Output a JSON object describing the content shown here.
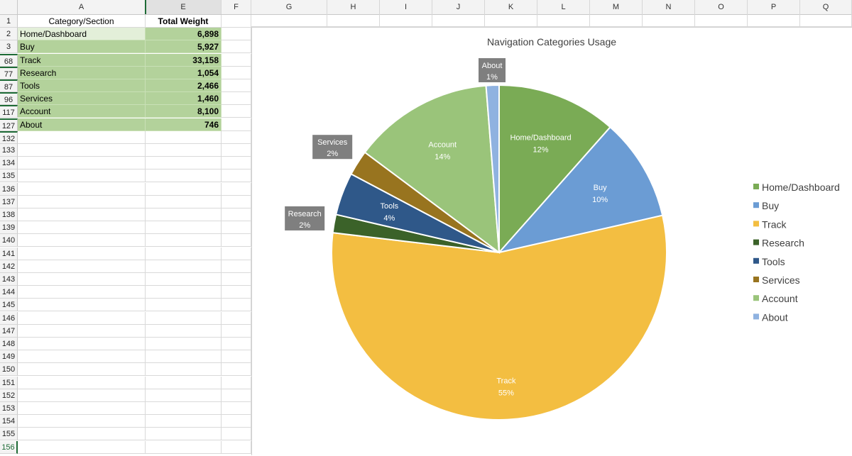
{
  "columns": [
    "A",
    "E",
    "F",
    "G",
    "H",
    "I",
    "J",
    "K",
    "L",
    "M",
    "N",
    "O",
    "P",
    "Q"
  ],
  "table": {
    "headers": {
      "row": "1",
      "a": "Category/Section",
      "e": "Total Weight"
    },
    "rows": [
      {
        "row": "2",
        "a": "Home/Dashboard",
        "e": "6,898"
      },
      {
        "row": "3",
        "a": "Buy",
        "e": "5,927"
      },
      {
        "row": "68",
        "a": "Track",
        "e": "33,158"
      },
      {
        "row": "77",
        "a": "Research",
        "e": "1,054"
      },
      {
        "row": "87",
        "a": "Tools",
        "e": "2,466"
      },
      {
        "row": "96",
        "a": "Services",
        "e": "1,460"
      },
      {
        "row": "117",
        "a": "Account",
        "e": "8,100"
      },
      {
        "row": "127",
        "a": "About",
        "e": "746"
      }
    ],
    "empty_rows": [
      "132",
      "133",
      "134",
      "135",
      "136",
      "137",
      "138",
      "139",
      "140",
      "141",
      "142",
      "143",
      "144",
      "145",
      "146",
      "147",
      "148",
      "149",
      "150",
      "151",
      "152",
      "153",
      "154",
      "155",
      "156"
    ]
  },
  "colors": {
    "Home/Dashboard": "#7aab55",
    "Buy": "#6b9cd4",
    "Track": "#f3be41",
    "Research": "#3b6229",
    "Tools": "#2f5889",
    "Services": "#98741f",
    "Account": "#9ac47a",
    "About": "#8fb2e0",
    "callout_bg": "#7f7f7f",
    "selection_green": "#1e6b36"
  },
  "chart_data": {
    "type": "pie",
    "title": "Navigation Categories Usage",
    "categories": [
      "Home/Dashboard",
      "Buy",
      "Track",
      "Research",
      "Tools",
      "Services",
      "Account",
      "About"
    ],
    "values": [
      6898,
      5927,
      33158,
      1054,
      2466,
      1460,
      8100,
      746
    ],
    "percent_labels": [
      "12%",
      "10%",
      "55%",
      "2%",
      "4%",
      "2%",
      "14%",
      "1%"
    ],
    "legend": [
      "Home/Dashboard",
      "Buy",
      "Track",
      "Research",
      "Tools",
      "Services",
      "Account",
      "About"
    ],
    "legend_position": "right"
  }
}
